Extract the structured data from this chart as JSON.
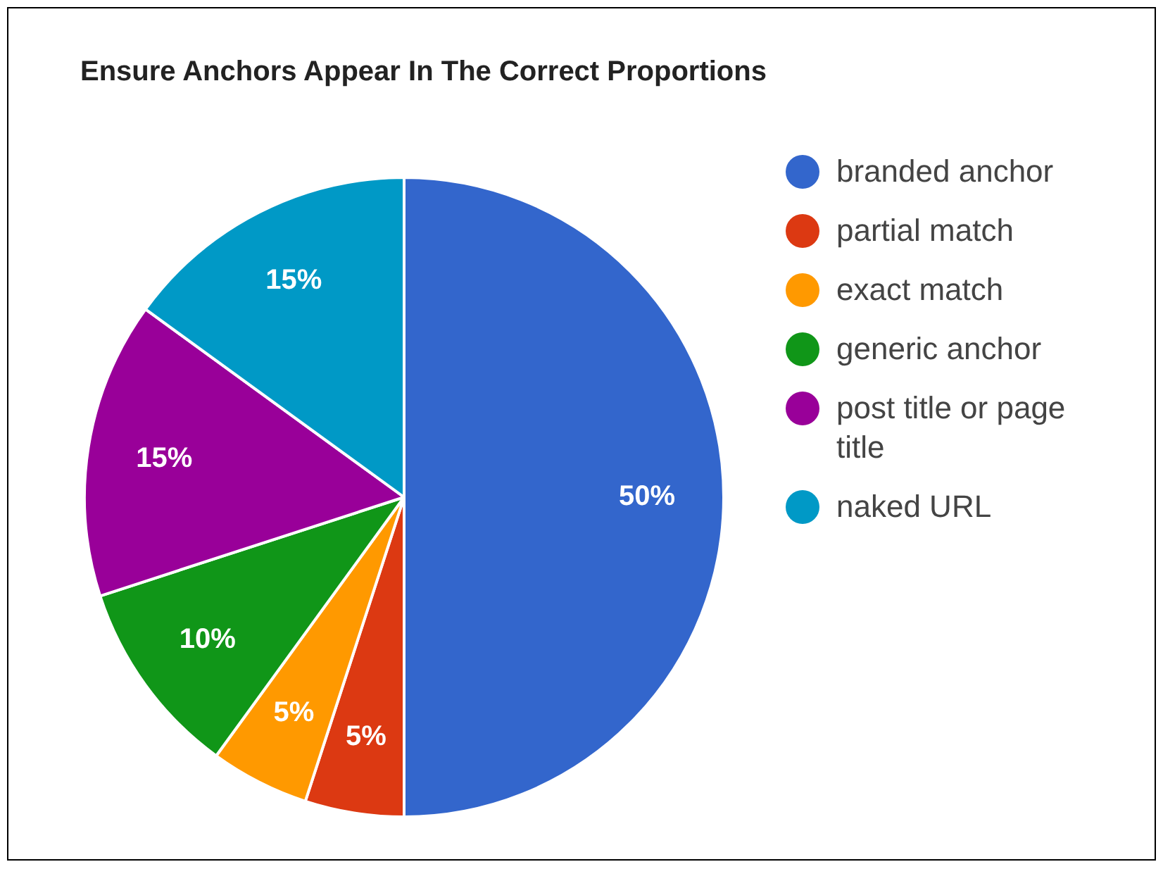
{
  "chart_data": {
    "type": "pie",
    "title": "Ensure Anchors Appear In The Correct Proportions",
    "categories": [
      "branded anchor",
      "partial match",
      "exact match",
      "generic anchor",
      "post title or page title",
      "naked URL"
    ],
    "values": [
      50,
      5,
      5,
      10,
      15,
      15
    ],
    "colors": [
      "#3366cc",
      "#dc3912",
      "#ff9900",
      "#109618",
      "#990099",
      "#0099c6"
    ],
    "value_labels": [
      "50%",
      "5%",
      "5%",
      "10%",
      "15%",
      "15%"
    ],
    "legend": "right"
  }
}
